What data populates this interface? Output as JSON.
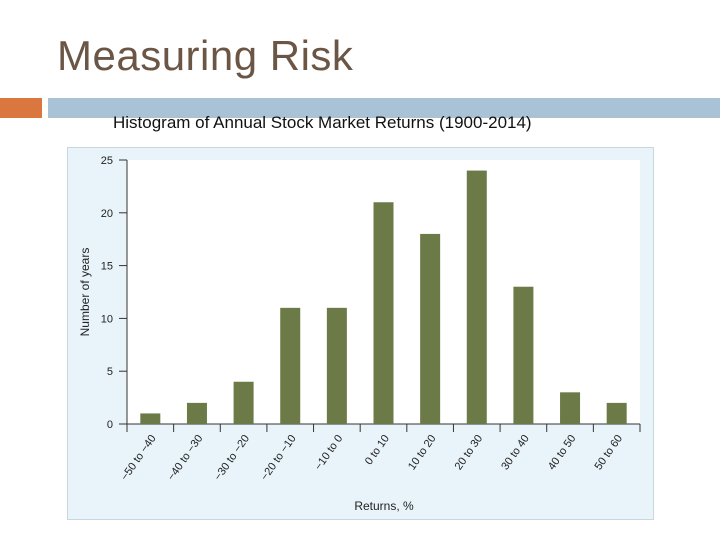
{
  "slide": {
    "title": "Measuring Risk",
    "accent_orange": "#d9773f",
    "accent_blue": "#a9c2d6"
  },
  "chart_data": {
    "type": "bar",
    "title": "Histogram of Annual Stock Market Returns (1900-2014)",
    "xlabel": "Returns, %",
    "ylabel": "Number of years",
    "categories": [
      "−50 to −40",
      "−40 to −30",
      "−30 to −20",
      "−20 to −10",
      "−10 to 0",
      "0 to 10",
      "10 to 20",
      "20 to 30",
      "30 to 40",
      "40 to 50",
      "50 to 60"
    ],
    "values": [
      1,
      2,
      4,
      11,
      11,
      21,
      18,
      24,
      13,
      3,
      2
    ],
    "ylim": [
      0,
      25
    ],
    "yticks": [
      0,
      5,
      10,
      15,
      20,
      25
    ],
    "bar_color": "#6b7a47",
    "panel_color": "#e8f4fa",
    "grid": false,
    "legend": "none"
  }
}
